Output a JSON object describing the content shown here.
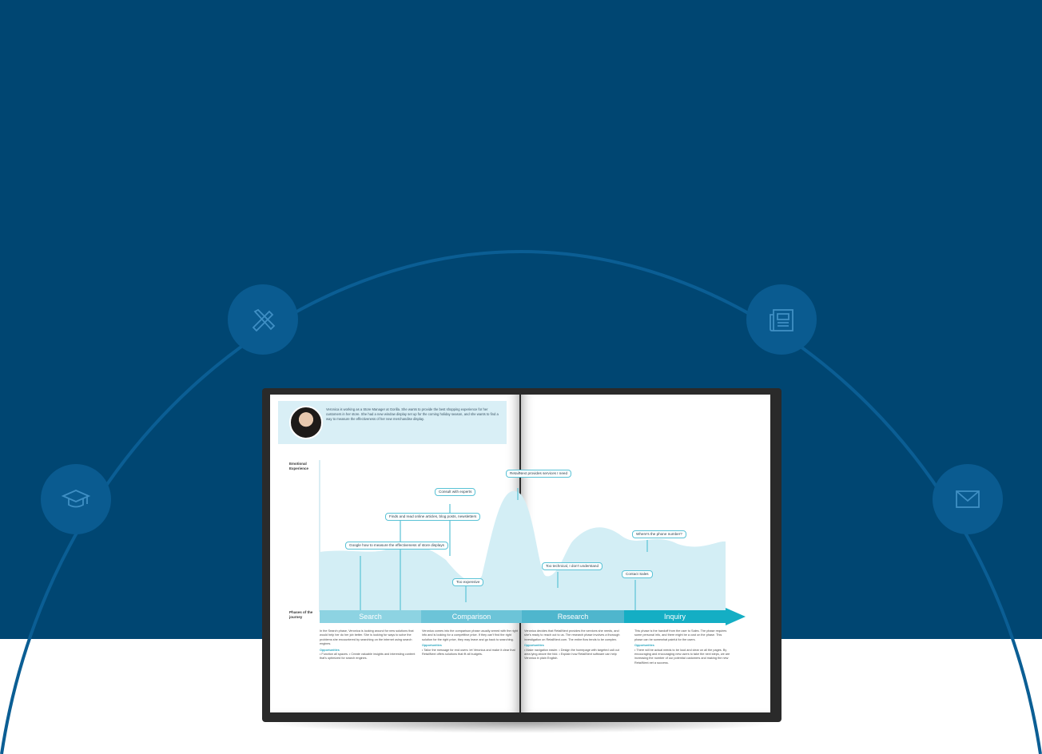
{
  "background": {
    "band_color": "#004672",
    "arc_color": "#0b5e94",
    "icon_circle_color": "#0a5b90"
  },
  "icons": [
    {
      "name": "graduation-cap-icon"
    },
    {
      "name": "design-tools-icon"
    },
    {
      "name": "newspaper-icon"
    },
    {
      "name": "envelope-icon"
    }
  ],
  "book": {
    "persona_text": "Veronica is working as a Store Manager at Gorilla. She wants to provide the best shopping experience for her customers in her store. She had a new window display set up for the coming holiday season, and she wants to find a way to measure the effectiveness of her new merchandise display.",
    "emotional_label": "Emotional Experience",
    "phases_label": "Phases of the journey",
    "bubbles": [
      "Google how to measure the effectiveness of store displays",
      "Finds and read online articles, blog posts, newsletters",
      "Consult with experts",
      "Too expensive",
      "RetailNext provides services I need",
      "Too technical, I don't understand",
      "Contact Sales",
      "Where's the phone number?"
    ],
    "phases": [
      "Search",
      "Comparison",
      "Research",
      "Inquiry"
    ],
    "phase_colors": [
      "#8dd3e2",
      "#6cc4d8",
      "#4fb6cd",
      "#14aec4"
    ],
    "columns": [
      {
        "body": "In the Search phase, Veronica is looking around for new solutions that would help her do her job better. She is looking for ways to solve the problems she encountered by searching on the internet using search engines.",
        "opportunities_label": "Opportunities",
        "items": "• Function all spaces. • Create valuable insights and interesting content that's optimized for search engines."
      },
      {
        "body": "Veronica comes into the comparison phase usually armed with the right info and is looking for a competitive price. If they can't find the right solution for the right price, they may leave and go back to searching.",
        "opportunities_label": "Opportunities",
        "items": "• Tailor the message for end users: let Veronica and make it clear that RetailNext offers solutions that fit all budgets."
      },
      {
        "body": "Veronica decides that RetailNext provides the services she needs, and she's ready to reach out to us. The research phase involves a thorough investigation on RetailNext.com. The entire flow tends to be complex.",
        "opportunities_label": "Opportunities",
        "items": "• Make navigation easier. • Design the homepage with targeted call out area lying above the fold. • Explain how RetailNext software can help Veronica in plain English."
      },
      {
        "body": "This phase is the handoff from the user to Sales. The phase requires some personal info, and there might be a cost on the phase. This phase can be somewhat painful for the users.",
        "opportunities_label": "Opportunities",
        "items": "• There will be actual needs to be loud and clear on all the pages. By encouraging and encouraging new users to take the next steps, we are increasing the number of our potential customers and making the new RetailNext.net a success."
      }
    ]
  }
}
